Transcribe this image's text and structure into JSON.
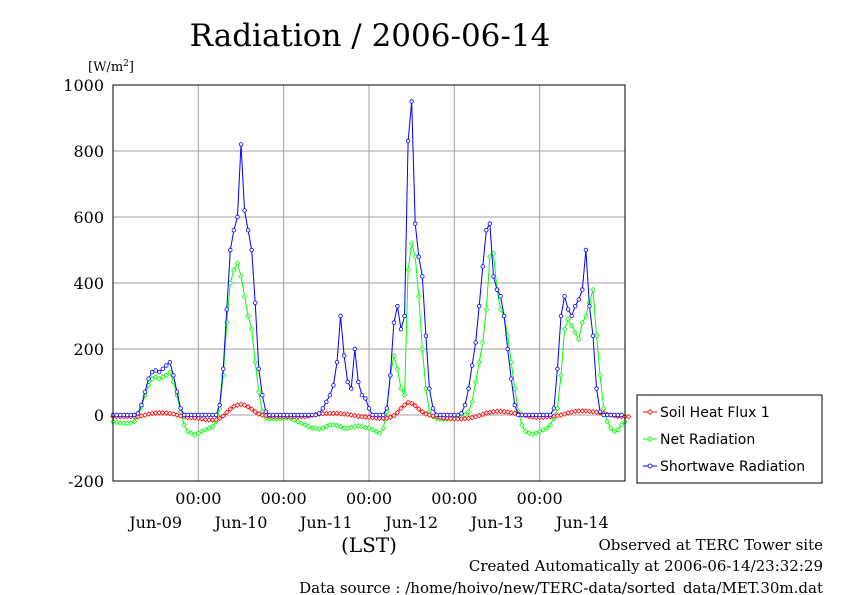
{
  "chart_data": {
    "type": "line",
    "title": "Radiation / 2006-06-14",
    "unit_label": "[W/m2]",
    "unit_base": "[W/m",
    "unit_sup": "2",
    "unit_close": "]",
    "xlabel": "(LST)",
    "ylim": [
      -200,
      1000
    ],
    "yticks": [
      1000,
      800,
      600,
      400,
      200,
      0,
      -200
    ],
    "xlim_hours": [
      0,
      144
    ],
    "x_time_ticks": [
      "00:00",
      "00:00",
      "00:00",
      "00:00",
      "00:00"
    ],
    "x_time_tick_hours": [
      24,
      48,
      72,
      96,
      120
    ],
    "x_day_labels": [
      "Jun-09",
      "Jun-10",
      "Jun-11",
      "Jun-12",
      "Jun-13",
      "Jun-14"
    ],
    "x_day_label_hours": [
      12,
      36,
      60,
      84,
      108,
      132
    ],
    "grid": true,
    "legend_position": "right",
    "x_start": "2006-06-09 00:00",
    "x_step_minutes": 60,
    "series": [
      {
        "name": "Soil Heat Flux 1",
        "color": "#ff0000",
        "marker": "diamond",
        "values": [
          -5,
          -5,
          -5,
          -5,
          -5,
          -5,
          -5,
          -5,
          -3,
          0,
          3,
          5,
          6,
          7,
          7,
          6,
          5,
          3,
          0,
          -3,
          -5,
          -7,
          -8,
          -9,
          -10,
          -12,
          -14,
          -15,
          -15,
          -14,
          -10,
          -3,
          8,
          18,
          26,
          30,
          32,
          30,
          25,
          18,
          10,
          3,
          0,
          -2,
          -4,
          -5,
          -5,
          -5,
          -5,
          -5,
          -5,
          -5,
          -5,
          -5,
          -5,
          -3,
          -1,
          1,
          3,
          4,
          5,
          5,
          5,
          5,
          4,
          3,
          2,
          0,
          -2,
          -4,
          -5,
          -6,
          -7,
          -8,
          -9,
          -10,
          -10,
          -10,
          -7,
          -2,
          8,
          20,
          30,
          38,
          35,
          28,
          18,
          10,
          3,
          0,
          -3,
          -5,
          -7,
          -9,
          -10,
          -11,
          -12,
          -12,
          -12,
          -11,
          -10,
          -8,
          -5,
          -2,
          2,
          6,
          8,
          10,
          11,
          11,
          10,
          9,
          7,
          5,
          3,
          0,
          -2,
          -4,
          -6,
          -7,
          -7,
          -7,
          -6,
          -5,
          -4,
          -2,
          0,
          3,
          6,
          9,
          11,
          12,
          12,
          12,
          11,
          10,
          9,
          7,
          5,
          2,
          0,
          -2,
          -4,
          -5,
          -5,
          -5
        ]
      },
      {
        "name": "Net Radiation",
        "color": "#00ff00",
        "marker": "diamond",
        "values": [
          -20,
          -22,
          -24,
          -25,
          -25,
          -24,
          -20,
          -5,
          25,
          60,
          90,
          110,
          115,
          110,
          115,
          120,
          130,
          100,
          60,
          10,
          -30,
          -50,
          -55,
          -60,
          -55,
          -50,
          -45,
          -40,
          -35,
          -20,
          20,
          120,
          280,
          400,
          440,
          460,
          420,
          360,
          300,
          260,
          160,
          70,
          10,
          -10,
          -12,
          -12,
          -12,
          -12,
          -10,
          -8,
          -10,
          -15,
          -20,
          -25,
          -30,
          -35,
          -40,
          -40,
          -42,
          -40,
          -35,
          -30,
          -30,
          -32,
          -35,
          -40,
          -40,
          -38,
          -35,
          -33,
          -35,
          -38,
          -40,
          -45,
          -50,
          -55,
          -40,
          10,
          120,
          180,
          140,
          80,
          60,
          440,
          520,
          480,
          360,
          200,
          80,
          10,
          -5,
          -10,
          -12,
          -12,
          -12,
          -12,
          -10,
          -8,
          -5,
          0,
          10,
          40,
          100,
          160,
          220,
          320,
          480,
          490,
          380,
          320,
          300,
          240,
          160,
          80,
          10,
          -30,
          -50,
          -55,
          -58,
          -55,
          -50,
          -45,
          -40,
          -30,
          -10,
          20,
          120,
          260,
          290,
          270,
          250,
          230,
          280,
          300,
          340,
          380,
          240,
          120,
          20,
          -20,
          -40,
          -50,
          -45,
          -30,
          -20
        ]
      },
      {
        "name": "Shortwave Radiation",
        "color": "#0000ff",
        "marker": "circle",
        "values": [
          0,
          0,
          0,
          0,
          0,
          0,
          0,
          5,
          30,
          70,
          110,
          130,
          135,
          130,
          140,
          150,
          160,
          120,
          70,
          20,
          0,
          0,
          0,
          0,
          0,
          0,
          0,
          0,
          0,
          0,
          30,
          140,
          320,
          500,
          560,
          600,
          820,
          620,
          560,
          500,
          340,
          140,
          60,
          10,
          0,
          0,
          0,
          0,
          0,
          0,
          0,
          0,
          0,
          0,
          0,
          0,
          0,
          0,
          5,
          20,
          40,
          60,
          90,
          160,
          300,
          180,
          100,
          80,
          200,
          100,
          60,
          50,
          20,
          0,
          0,
          0,
          0,
          20,
          120,
          280,
          330,
          260,
          300,
          830,
          950,
          580,
          480,
          420,
          240,
          80,
          20,
          0,
          0,
          0,
          0,
          0,
          0,
          0,
          5,
          30,
          80,
          150,
          220,
          330,
          450,
          560,
          580,
          420,
          380,
          360,
          300,
          200,
          110,
          30,
          0,
          0,
          0,
          0,
          0,
          0,
          0,
          0,
          0,
          0,
          20,
          140,
          300,
          360,
          320,
          300,
          330,
          350,
          380,
          500,
          330,
          240,
          80,
          10,
          0,
          0,
          0,
          0,
          0,
          0
        ]
      }
    ]
  },
  "footer": {
    "observed": "Observed at TERC Tower site",
    "created": "Created Automatically at 2006-06-14/23:32:29",
    "source": "Data source : /home/hoivo/new/TERC-data/sorted_data/MET.30m.dat"
  }
}
